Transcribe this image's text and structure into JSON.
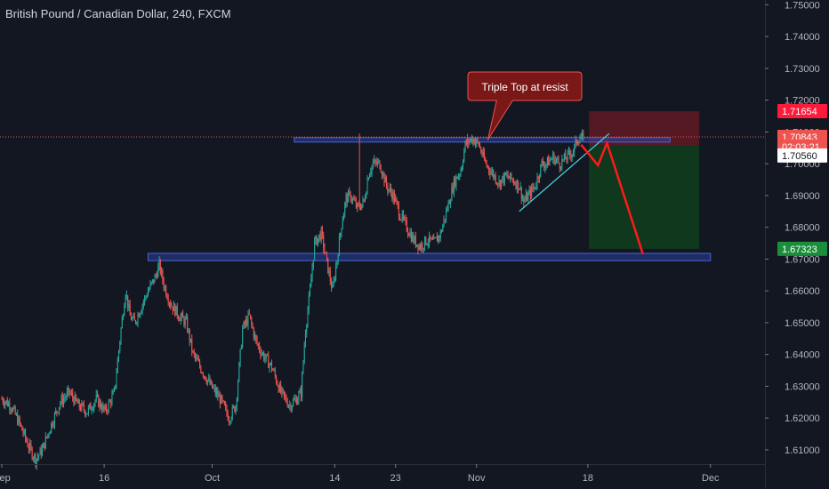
{
  "header": {
    "title": "British Pound / Canadian Dollar, 240, FXCM"
  },
  "colors": {
    "background": "#131722",
    "up": "#26a69a",
    "down": "#ef5350",
    "axis_text": "#b2b5be",
    "zone_blue": "#2a3fa0",
    "stop_zone": "#5c1a22",
    "target_zone": "#0f3a1e",
    "price_line": "#ef5350",
    "projection": "#ff1a1a",
    "trendline": "#4dd0e1"
  },
  "chart_data": {
    "type": "candlestick",
    "title": "British Pound / Canadian Dollar, 240, FXCM",
    "ylim": [
      1.6055,
      1.7515
    ],
    "y_ticks": [
      1.61,
      1.62,
      1.63,
      1.64,
      1.65,
      1.66,
      1.67,
      1.68,
      1.69,
      1.7,
      1.71,
      1.72,
      1.73,
      1.74,
      1.75
    ],
    "y_tick_labels": [
      "1.61000",
      "1.62000",
      "1.63000",
      "1.64000",
      "1.65000",
      "1.66000",
      "1.67000",
      "1.68000",
      "1.69000",
      "1.70000",
      "1.71000",
      "1.72000",
      "1.73000",
      "1.74000",
      "1.75000"
    ],
    "x_ticks": [
      {
        "label": "Sep",
        "index": 0
      },
      {
        "label": "16",
        "index": 91
      },
      {
        "label": "Oct",
        "index": 187
      },
      {
        "label": "14",
        "index": 296
      },
      {
        "label": "23",
        "index": 350
      },
      {
        "label": "Nov",
        "index": 422
      },
      {
        "label": "18",
        "index": 521
      },
      {
        "label": "Dec",
        "index": 630
      }
    ],
    "total_slots": 680,
    "path": [
      [
        0,
        1.626
      ],
      [
        8,
        1.624
      ],
      [
        16,
        1.618
      ],
      [
        24,
        1.611
      ],
      [
        30,
        1.607
      ],
      [
        36,
        1.61
      ],
      [
        44,
        1.618
      ],
      [
        52,
        1.625
      ],
      [
        60,
        1.628
      ],
      [
        68,
        1.624
      ],
      [
        76,
        1.622
      ],
      [
        84,
        1.626
      ],
      [
        92,
        1.622
      ],
      [
        100,
        1.628
      ],
      [
        106,
        1.648
      ],
      [
        110,
        1.66
      ],
      [
        114,
        1.652
      ],
      [
        118,
        1.65
      ],
      [
        124,
        1.655
      ],
      [
        130,
        1.66
      ],
      [
        136,
        1.664
      ],
      [
        140,
        1.668
      ],
      [
        144,
        1.662
      ],
      [
        150,
        1.656
      ],
      [
        158,
        1.652
      ],
      [
        164,
        1.65
      ],
      [
        170,
        1.64
      ],
      [
        178,
        1.635
      ],
      [
        186,
        1.63
      ],
      [
        194,
        1.626
      ],
      [
        202,
        1.62
      ],
      [
        208,
        1.624
      ],
      [
        214,
        1.648
      ],
      [
        220,
        1.652
      ],
      [
        226,
        1.644
      ],
      [
        232,
        1.64
      ],
      [
        240,
        1.636
      ],
      [
        248,
        1.628
      ],
      [
        256,
        1.624
      ],
      [
        262,
        1.626
      ],
      [
        266,
        1.628
      ],
      [
        270,
        1.648
      ],
      [
        274,
        1.66
      ],
      [
        278,
        1.675
      ],
      [
        284,
        1.678
      ],
      [
        290,
        1.667
      ],
      [
        294,
        1.66
      ],
      [
        298,
        1.67
      ],
      [
        302,
        1.681
      ],
      [
        306,
        1.689
      ],
      [
        310,
        1.69
      ],
      [
        316,
        1.686
      ],
      [
        322,
        1.688
      ],
      [
        326,
        1.697
      ],
      [
        330,
        1.7
      ],
      [
        336,
        1.7
      ],
      [
        342,
        1.693
      ],
      [
        348,
        1.69
      ],
      [
        354,
        1.684
      ],
      [
        360,
        1.68
      ],
      [
        366,
        1.676
      ],
      [
        372,
        1.674
      ],
      [
        378,
        1.676
      ],
      [
        384,
        1.675
      ],
      [
        390,
        1.678
      ],
      [
        396,
        1.686
      ],
      [
        402,
        1.694
      ],
      [
        408,
        1.698
      ],
      [
        412,
        1.706
      ],
      [
        418,
        1.708
      ],
      [
        424,
        1.706
      ],
      [
        430,
        1.7
      ],
      [
        436,
        1.697
      ],
      [
        442,
        1.694
      ],
      [
        448,
        1.696
      ],
      [
        454,
        1.695
      ],
      [
        460,
        1.693
      ],
      [
        464,
        1.688
      ],
      [
        468,
        1.69
      ],
      [
        474,
        1.693
      ],
      [
        480,
        1.7
      ],
      [
        484,
        1.7
      ],
      [
        490,
        1.702
      ],
      [
        496,
        1.7
      ],
      [
        502,
        1.702
      ],
      [
        508,
        1.704
      ],
      [
        512,
        1.708
      ],
      [
        517,
        1.7084
      ]
    ],
    "spike_highs": [
      {
        "index": 318,
        "high": 1.7095
      }
    ],
    "resistance_zone": {
      "from_index": 260,
      "to_index": 594,
      "low": 1.7068,
      "high": 1.7082
    },
    "support_zone": {
      "from_index": 130,
      "to_index": 630,
      "low": 1.6695,
      "high": 1.6718
    },
    "stop_zone": {
      "from_index": 522,
      "to_index": 620,
      "low": 1.7056,
      "high": 1.7165
    },
    "target_zone": {
      "from_index": 522,
      "to_index": 620,
      "low": 1.6732,
      "high": 1.7056
    },
    "current_price": 1.70843,
    "trendline": [
      [
        460,
        1.685
      ],
      [
        540,
        1.7095
      ]
    ],
    "projection": [
      [
        515,
        1.706
      ],
      [
        530,
        1.6995
      ],
      [
        538,
        1.7065
      ],
      [
        570,
        1.6715
      ]
    ],
    "annotation": {
      "text": "Triple Top at resist",
      "index": 432,
      "price": 1.7075
    },
    "price_labels": [
      {
        "text": "1.71654",
        "price": 1.71654,
        "color": "#ff1a3c",
        "text_color": "#ffffff"
      },
      {
        "text": "1.70843",
        "price": 1.70843,
        "color": "#ef5350",
        "text_color": "#ffffff"
      },
      {
        "text": "02:03:21",
        "price": 1.7054,
        "color": "#ef5350",
        "text_color": "#ffffff",
        "small": true
      },
      {
        "text": "1.70560",
        "price": 1.7026,
        "color": "#ffffff",
        "text_color": "#131722"
      },
      {
        "text": "1.67323",
        "price": 1.67323,
        "color": "#1b8e3c",
        "text_color": "#ffffff"
      }
    ]
  }
}
